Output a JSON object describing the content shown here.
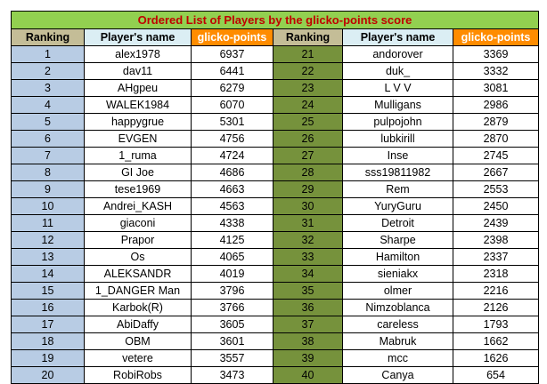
{
  "title": "Ordered List of Players by the glicko-points score",
  "headers": [
    "Ranking",
    "Player's name",
    "glicko-points",
    "Ranking",
    "Player's name",
    "glicko-points"
  ],
  "rows": [
    [
      {
        "rank": "1",
        "name": "alex1978",
        "points": "6937"
      },
      {
        "rank": "21",
        "name": "andorover",
        "points": "3369"
      }
    ],
    [
      {
        "rank": "2",
        "name": "dav11",
        "points": "6441"
      },
      {
        "rank": "22",
        "name": "duk_",
        "points": "3332"
      }
    ],
    [
      {
        "rank": "3",
        "name": "AHgpeu",
        "points": "6279"
      },
      {
        "rank": "23",
        "name": "L V V",
        "points": "3081"
      }
    ],
    [
      {
        "rank": "4",
        "name": "WALEK1984",
        "points": "6070"
      },
      {
        "rank": "24",
        "name": "Mulligans",
        "points": "2986"
      }
    ],
    [
      {
        "rank": "5",
        "name": "happygrue",
        "points": "5301"
      },
      {
        "rank": "25",
        "name": "pulpojohn",
        "points": "2879"
      }
    ],
    [
      {
        "rank": "6",
        "name": "EVGEN",
        "points": "4756"
      },
      {
        "rank": "26",
        "name": "lubkirill",
        "points": "2870"
      }
    ],
    [
      {
        "rank": "7",
        "name": "1_ruma",
        "points": "4724"
      },
      {
        "rank": "27",
        "name": "Inse",
        "points": "2745"
      }
    ],
    [
      {
        "rank": "8",
        "name": "GI Joe",
        "points": "4686"
      },
      {
        "rank": "28",
        "name": "sss19811982",
        "points": "2667"
      }
    ],
    [
      {
        "rank": "9",
        "name": "tese1969",
        "points": "4663"
      },
      {
        "rank": "29",
        "name": "Rem",
        "points": "2553"
      }
    ],
    [
      {
        "rank": "10",
        "name": "Andrei_KASH",
        "points": "4563"
      },
      {
        "rank": "30",
        "name": "YuryGuru",
        "points": "2450"
      }
    ],
    [
      {
        "rank": "11",
        "name": "giaconi",
        "points": "4338"
      },
      {
        "rank": "31",
        "name": "Detroit",
        "points": "2439"
      }
    ],
    [
      {
        "rank": "12",
        "name": "Prapor",
        "points": "4125"
      },
      {
        "rank": "32",
        "name": "Sharpe",
        "points": "2398"
      }
    ],
    [
      {
        "rank": "13",
        "name": "Os",
        "points": "4065"
      },
      {
        "rank": "33",
        "name": "Hamilton",
        "points": "2337"
      }
    ],
    [
      {
        "rank": "14",
        "name": "ALEKSANDR",
        "points": "4019"
      },
      {
        "rank": "34",
        "name": "sieniakx",
        "points": "2318"
      }
    ],
    [
      {
        "rank": "15",
        "name": "1_DANGER Man",
        "points": "3796"
      },
      {
        "rank": "35",
        "name": "olmer",
        "points": "2216"
      }
    ],
    [
      {
        "rank": "16",
        "name": "Karbok(R)",
        "points": "3766"
      },
      {
        "rank": "36",
        "name": "Nimzoblanca",
        "points": "2126"
      }
    ],
    [
      {
        "rank": "17",
        "name": "AbiDaffy",
        "points": "3605"
      },
      {
        "rank": "37",
        "name": "careless",
        "points": "1793"
      }
    ],
    [
      {
        "rank": "18",
        "name": "OBM",
        "points": "3601"
      },
      {
        "rank": "38",
        "name": "Mabruk",
        "points": "1662"
      }
    ],
    [
      {
        "rank": "19",
        "name": "vetere",
        "points": "3557"
      },
      {
        "rank": "39",
        "name": "mcc",
        "points": "1626"
      }
    ],
    [
      {
        "rank": "20",
        "name": "RobiRobs",
        "points": "3473"
      },
      {
        "rank": "40",
        "name": "Canya",
        "points": "654"
      }
    ]
  ],
  "colors": {
    "title_bg": "#92d050",
    "title_text": "#c00000",
    "ranking_header_bg": "#c4bd97",
    "name_header_bg": "#dbeef4",
    "points_header_bg": "#ff8c00",
    "rank_col1_bg": "#b8cce4",
    "rank_col2_bg": "#76923c"
  }
}
